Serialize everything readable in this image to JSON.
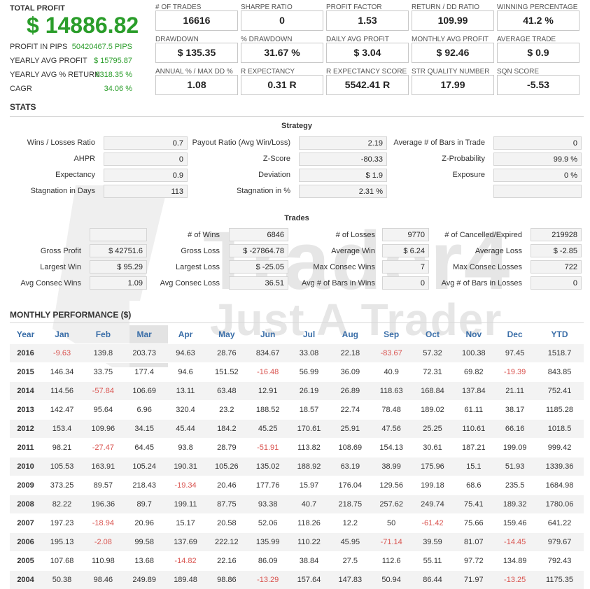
{
  "summary": {
    "total_profit_label": "TOTAL PROFIT",
    "total_profit_value": "$ 14886.82",
    "rows": [
      {
        "label": "PROFIT IN PIPS",
        "value": "50420467.5 PIPS"
      },
      {
        "label": "YEARLY AVG PROFIT",
        "value": "$ 15795.87"
      },
      {
        "label": "YEARLY AVG % RETURN",
        "value": "6318.35 %"
      },
      {
        "label": "CAGR",
        "value": "34.06 %"
      }
    ]
  },
  "metrics": [
    {
      "label": "# OF TRADES",
      "value": "16616"
    },
    {
      "label": "SHARPE RATIO",
      "value": "0"
    },
    {
      "label": "PROFIT FACTOR",
      "value": "1.53"
    },
    {
      "label": "RETURN / DD RATIO",
      "value": "109.99"
    },
    {
      "label": "WINNING PERCENTAGE",
      "value": "41.2 %"
    },
    {
      "label": "DRAWDOWN",
      "value": "$ 135.35"
    },
    {
      "label": "% DRAWDOWN",
      "value": "31.67 %"
    },
    {
      "label": "DAILY AVG PROFIT",
      "value": "$ 3.04"
    },
    {
      "label": "MONTHLY AVG PROFIT",
      "value": "$ 92.46"
    },
    {
      "label": "AVERAGE TRADE",
      "value": "$ 0.9"
    },
    {
      "label": "ANNUAL % / MAX DD %",
      "value": "1.08"
    },
    {
      "label": "R EXPECTANCY",
      "value": "0.31 R"
    },
    {
      "label": "R EXPECTANCY SCORE",
      "value": "5542.41 R"
    },
    {
      "label": "STR QUALITY NUMBER",
      "value": "17.99"
    },
    {
      "label": "SQN SCORE",
      "value": "-5.53"
    }
  ],
  "stats_title": "STATS",
  "strategy": {
    "title": "Strategy",
    "rows": [
      [
        {
          "label": "Wins / Losses Ratio",
          "value": "0.7"
        },
        {
          "label": "Payout Ratio (Avg Win/Loss)",
          "value": "2.19"
        },
        {
          "label": "Average # of Bars in Trade",
          "value": "0"
        }
      ],
      [
        {
          "label": "AHPR",
          "value": "0"
        },
        {
          "label": "Z-Score",
          "value": "-80.33"
        },
        {
          "label": "Z-Probability",
          "value": "99.9 %"
        }
      ],
      [
        {
          "label": "Expectancy",
          "value": "0.9"
        },
        {
          "label": "Deviation",
          "value": "$ 1.9"
        },
        {
          "label": "Exposure",
          "value": "0 %"
        }
      ],
      [
        {
          "label": "Stagnation in Days",
          "value": "113"
        },
        {
          "label": "Stagnation in %",
          "value": "2.31 %"
        },
        {
          "label": "",
          "value": ""
        }
      ]
    ]
  },
  "trades": {
    "title": "Trades",
    "rows": [
      [
        {
          "label": "",
          "value": ""
        },
        {
          "label": "# of Wins",
          "value": "6846"
        },
        {
          "label": "# of Losses",
          "value": "9770"
        },
        {
          "label": "# of Cancelled/Expired",
          "value": "219928"
        }
      ],
      [
        {
          "label": "Gross Profit",
          "value": "$ 42751.6"
        },
        {
          "label": "Gross Loss",
          "value": "$ -27864.78"
        },
        {
          "label": "Average Win",
          "value": "$ 6.24"
        },
        {
          "label": "Average Loss",
          "value": "$ -2.85"
        }
      ],
      [
        {
          "label": "Largest Win",
          "value": "$ 95.29"
        },
        {
          "label": "Largest Loss",
          "value": "$ -25.05"
        },
        {
          "label": "Max Consec Wins",
          "value": "7"
        },
        {
          "label": "Max Consec Losses",
          "value": "722"
        }
      ],
      [
        {
          "label": "Avg Consec Wins",
          "value": "1.09"
        },
        {
          "label": "Avg Consec Loss",
          "value": "36.51"
        },
        {
          "label": "Avg # of Bars in Wins",
          "value": "0"
        },
        {
          "label": "Avg # of Bars in Losses",
          "value": "0"
        }
      ]
    ]
  },
  "watermark": {
    "line1": "Trader4",
    "line2": "Just A Trader"
  },
  "monthly": {
    "title": "MONTHLY PERFORMANCE ($)",
    "headers": [
      "Year",
      "Jan",
      "Feb",
      "Mar",
      "Apr",
      "May",
      "Jun",
      "Jul",
      "Aug",
      "Sep",
      "Oct",
      "Nov",
      "Dec",
      "YTD"
    ],
    "rows": [
      [
        "2016",
        "-9.63",
        "139.8",
        "203.73",
        "94.63",
        "28.76",
        "834.67",
        "33.08",
        "22.18",
        "-83.67",
        "57.32",
        "100.38",
        "97.45",
        "1518.7"
      ],
      [
        "2015",
        "146.34",
        "33.75",
        "177.4",
        "94.6",
        "151.52",
        "-16.48",
        "56.99",
        "36.09",
        "40.9",
        "72.31",
        "69.82",
        "-19.39",
        "843.85"
      ],
      [
        "2014",
        "114.56",
        "-57.84",
        "106.69",
        "13.11",
        "63.48",
        "12.91",
        "26.19",
        "26.89",
        "118.63",
        "168.84",
        "137.84",
        "21.11",
        "752.41"
      ],
      [
        "2013",
        "142.47",
        "95.64",
        "6.96",
        "320.4",
        "23.2",
        "188.52",
        "18.57",
        "22.74",
        "78.48",
        "189.02",
        "61.11",
        "38.17",
        "1185.28"
      ],
      [
        "2012",
        "153.4",
        "109.96",
        "34.15",
        "45.44",
        "184.2",
        "45.25",
        "170.61",
        "25.91",
        "47.56",
        "25.25",
        "110.61",
        "66.16",
        "1018.5"
      ],
      [
        "2011",
        "98.21",
        "-27.47",
        "64.45",
        "93.8",
        "28.79",
        "-51.91",
        "113.82",
        "108.69",
        "154.13",
        "30.61",
        "187.21",
        "199.09",
        "999.42"
      ],
      [
        "2010",
        "105.53",
        "163.91",
        "105.24",
        "190.31",
        "105.26",
        "135.02",
        "188.92",
        "63.19",
        "38.99",
        "175.96",
        "15.1",
        "51.93",
        "1339.36"
      ],
      [
        "2009",
        "373.25",
        "89.57",
        "218.43",
        "-19.34",
        "20.46",
        "177.76",
        "15.97",
        "176.04",
        "129.56",
        "199.18",
        "68.6",
        "235.5",
        "1684.98"
      ],
      [
        "2008",
        "82.22",
        "196.36",
        "89.7",
        "199.11",
        "87.75",
        "93.38",
        "40.7",
        "218.75",
        "257.62",
        "249.74",
        "75.41",
        "189.32",
        "1780.06"
      ],
      [
        "2007",
        "197.23",
        "-18.94",
        "20.96",
        "15.17",
        "20.58",
        "52.06",
        "118.26",
        "12.2",
        "50",
        "-61.42",
        "75.66",
        "159.46",
        "641.22"
      ],
      [
        "2006",
        "195.13",
        "-2.08",
        "99.58",
        "137.69",
        "222.12",
        "135.99",
        "110.22",
        "45.95",
        "-71.14",
        "39.59",
        "81.07",
        "-14.45",
        "979.67"
      ],
      [
        "2005",
        "107.68",
        "110.98",
        "13.68",
        "-14.82",
        "22.16",
        "86.09",
        "38.84",
        "27.5",
        "112.6",
        "55.11",
        "97.72",
        "134.89",
        "792.43"
      ],
      [
        "2004",
        "50.38",
        "98.46",
        "249.89",
        "189.48",
        "98.86",
        "-13.29",
        "157.64",
        "147.83",
        "50.94",
        "86.44",
        "71.97",
        "-13.25",
        "1175.35"
      ]
    ]
  },
  "colors": {
    "positive": "#2a9d2a",
    "negative": "#d9534f",
    "header": "#3a6ea8"
  }
}
